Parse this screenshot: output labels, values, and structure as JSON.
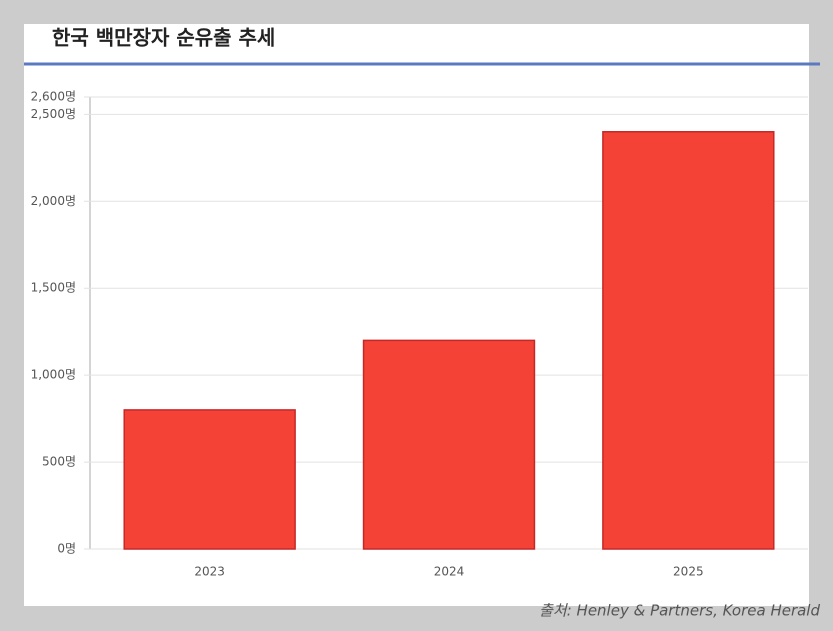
{
  "chart_data": {
    "type": "bar",
    "title": "한국 백만장자 순유출 추세",
    "categories": [
      "2023",
      "2024",
      "2025"
    ],
    "values": [
      800,
      1200,
      2400
    ],
    "color": "#f44336",
    "edge_color": "#c62828",
    "ylim": [
      0,
      2600
    ],
    "yticks": [
      {
        "value": 0,
        "label": "0명"
      },
      {
        "value": 500,
        "label": "500명"
      },
      {
        "value": 1000,
        "label": "1,000명"
      },
      {
        "value": 1500,
        "label": "1,500명"
      },
      {
        "value": 2000,
        "label": "2,000명"
      },
      {
        "value": 2500,
        "label": "2,500명"
      },
      {
        "value": 2600,
        "label": "2,600명"
      }
    ],
    "grid": true,
    "source": "출처: Henley & Partners, Korea Herald"
  }
}
